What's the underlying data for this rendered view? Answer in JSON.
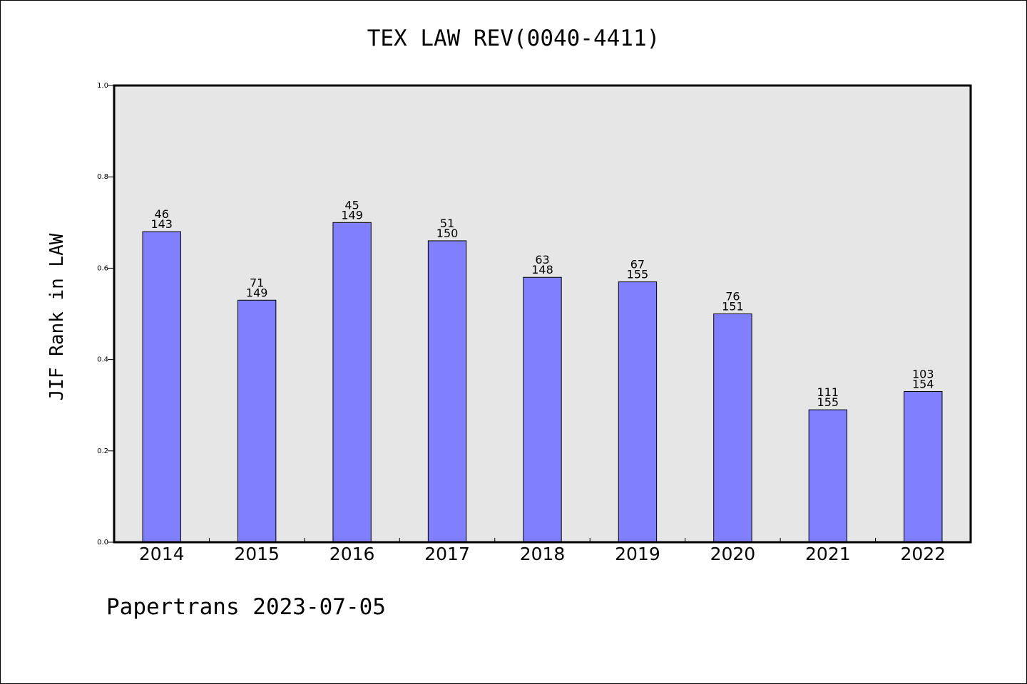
{
  "title": "TEX LAW REV(0040-4411)",
  "footer": "Papertrans 2023-07-05",
  "chart_data": {
    "type": "bar",
    "title": "TEX LAW REV(0040-4411)",
    "xlabel": "",
    "ylabel": "JIF Rank in LAW",
    "ylim": [
      0,
      1.0
    ],
    "yticks": [
      "0.0",
      "0.2",
      "0.4",
      "0.6",
      "0.8",
      "1.0"
    ],
    "grid": false,
    "categories": [
      "2014",
      "2015",
      "2016",
      "2017",
      "2018",
      "2019",
      "2020",
      "2021",
      "2022"
    ],
    "values": [
      0.68,
      0.53,
      0.7,
      0.66,
      0.58,
      0.57,
      0.5,
      0.29,
      0.33
    ],
    "annotations": [
      {
        "top": "46",
        "bottom": "143"
      },
      {
        "top": "71",
        "bottom": "149"
      },
      {
        "top": "45",
        "bottom": "149"
      },
      {
        "top": "51",
        "bottom": "150"
      },
      {
        "top": "63",
        "bottom": "148"
      },
      {
        "top": "67",
        "bottom": "155"
      },
      {
        "top": "76",
        "bottom": "151"
      },
      {
        "top": "111",
        "bottom": "155"
      },
      {
        "top": "103",
        "bottom": "154"
      }
    ],
    "colors": {
      "bar": "#8080ff",
      "plot_bg": "#e6e6e6",
      "edge": "#000000"
    }
  }
}
